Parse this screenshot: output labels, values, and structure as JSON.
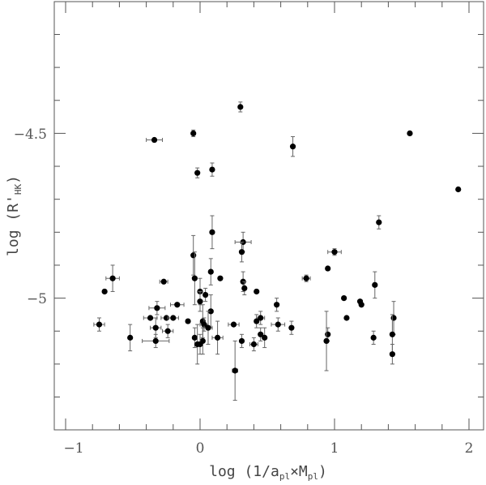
{
  "chart_data": {
    "type": "scatter",
    "title": "",
    "xlabel": "log (1/a_pl×M_pl)",
    "ylabel": "log (R'_HK)",
    "xlabel_parts": {
      "main": "log (1/a",
      "sub1": "pl",
      "mid": "×M",
      "sub2": "pl",
      "end": ")"
    },
    "ylabel_parts": {
      "main": "log (R'",
      "sub": "HK",
      "end": ")"
    },
    "xlim": [
      -1.1,
      2.1
    ],
    "ylim": [
      -5.4,
      -4.2
    ],
    "x_ticks": [
      -1,
      0,
      1,
      2
    ],
    "x_tick_labels": [
      "−1",
      "0",
      "1",
      "2"
    ],
    "y_ticks": [
      -4.5,
      -5
    ],
    "y_tick_labels": [
      "−4.5",
      "−5"
    ],
    "x_minor_step": 0.2,
    "y_minor_step": 0.1,
    "grid": false,
    "colors": {
      "points": "#000000",
      "axes": "#555555",
      "errorbars": "#666666"
    },
    "points": [
      {
        "x": 0.3,
        "y": -4.42,
        "ye": 0.015
      },
      {
        "x": -0.34,
        "y": -4.52,
        "xe": 0.06
      },
      {
        "x": -0.05,
        "y": -4.5,
        "ye": 0.01
      },
      {
        "x": 1.56,
        "y": -4.5
      },
      {
        "x": 0.69,
        "y": -4.54,
        "ye": 0.03
      },
      {
        "x": -0.02,
        "y": -4.62,
        "ye": 0.015
      },
      {
        "x": 0.09,
        "y": -4.61,
        "ye": 0.02
      },
      {
        "x": 1.92,
        "y": -4.67
      },
      {
        "x": 1.33,
        "y": -4.77,
        "ye": 0.02
      },
      {
        "x": 0.09,
        "y": -4.8,
        "ye": 0.05
      },
      {
        "x": 0.32,
        "y": -4.83,
        "ye": 0.03,
        "xe": 0.06
      },
      {
        "x": 0.31,
        "y": -4.86,
        "ye": 0.03
      },
      {
        "x": 1.0,
        "y": -4.86,
        "ye": 0.01,
        "xe": 0.05
      },
      {
        "x": -0.05,
        "y": -4.87,
        "ye": 0.06
      },
      {
        "x": 0.95,
        "y": -4.91
      },
      {
        "x": 0.08,
        "y": -4.92,
        "ye": 0.04
      },
      {
        "x": -0.65,
        "y": -4.94,
        "ye": 0.04,
        "xe": 0.05
      },
      {
        "x": 0.15,
        "y": -4.94
      },
      {
        "x": 0.79,
        "y": -4.94,
        "ye": 0.01,
        "xe": 0.03
      },
      {
        "x": -0.04,
        "y": -4.94,
        "ye": 0.08
      },
      {
        "x": -0.27,
        "y": -4.95,
        "xe": 0.03
      },
      {
        "x": 0.32,
        "y": -4.95,
        "ye": 0.03
      },
      {
        "x": 0.33,
        "y": -4.97,
        "ye": 0.02
      },
      {
        "x": 1.3,
        "y": -4.96,
        "ye": 0.04
      },
      {
        "x": -0.71,
        "y": -4.98
      },
      {
        "x": 0.0,
        "y": -4.98,
        "ye": 0.04
      },
      {
        "x": 0.42,
        "y": -4.98
      },
      {
        "x": 0.04,
        "y": -4.99,
        "ye": 0.02
      },
      {
        "x": 1.07,
        "y": -5.0
      },
      {
        "x": 0.0,
        "y": -5.01,
        "ye": 0.03
      },
      {
        "x": 1.19,
        "y": -5.01
      },
      {
        "x": 1.2,
        "y": -5.02
      },
      {
        "x": -0.17,
        "y": -5.02,
        "xe": 0.05
      },
      {
        "x": 0.57,
        "y": -5.02,
        "ye": 0.02
      },
      {
        "x": -0.32,
        "y": -5.03,
        "ye": 0.02,
        "xe": 0.06
      },
      {
        "x": 0.08,
        "y": -5.04,
        "ye": 0.05
      },
      {
        "x": -0.37,
        "y": -5.06,
        "xe": 0.05
      },
      {
        "x": -0.25,
        "y": -5.06,
        "xe": 0.04
      },
      {
        "x": -0.2,
        "y": -5.06,
        "xe": 0.04
      },
      {
        "x": 0.45,
        "y": -5.06,
        "ye": 0.02,
        "xe": 0.03
      },
      {
        "x": 1.09,
        "y": -5.06
      },
      {
        "x": 1.44,
        "y": -5.06,
        "ye": 0.05
      },
      {
        "x": -0.09,
        "y": -5.07
      },
      {
        "x": 0.02,
        "y": -5.07,
        "ye": 0.05
      },
      {
        "x": 0.42,
        "y": -5.07,
        "ye": 0.02
      },
      {
        "x": -0.75,
        "y": -5.08,
        "ye": 0.02,
        "xe": 0.04
      },
      {
        "x": 0.03,
        "y": -5.08,
        "ye": 0.02,
        "xe": 0.03
      },
      {
        "x": 0.25,
        "y": -5.08,
        "xe": 0.04
      },
      {
        "x": 0.58,
        "y": -5.08,
        "ye": 0.02,
        "xe": 0.05
      },
      {
        "x": 0.68,
        "y": -5.09,
        "ye": 0.02
      },
      {
        "x": -0.33,
        "y": -5.09,
        "ye": 0.03,
        "xe": 0.04
      },
      {
        "x": 0.06,
        "y": -5.09,
        "ye": 0.05,
        "xe": 0.03
      },
      {
        "x": -0.24,
        "y": -5.1,
        "ye": 0.02,
        "xe": 0.04
      },
      {
        "x": 0.45,
        "y": -5.11,
        "ye": 0.02
      },
      {
        "x": 0.95,
        "y": -5.11,
        "ye": 0.02
      },
      {
        "x": 1.43,
        "y": -5.11,
        "ye": 0.06
      },
      {
        "x": -0.52,
        "y": -5.12,
        "ye": 0.04
      },
      {
        "x": 0.13,
        "y": -5.12,
        "ye": 0.05,
        "xe": 0.04
      },
      {
        "x": 0.48,
        "y": -5.12,
        "ye": 0.03
      },
      {
        "x": -0.04,
        "y": -5.12,
        "ye": 0.03
      },
      {
        "x": 1.29,
        "y": -5.12,
        "ye": 0.02
      },
      {
        "x": 0.02,
        "y": -5.13,
        "ye": 0.04
      },
      {
        "x": 0.31,
        "y": -5.13,
        "ye": 0.02
      },
      {
        "x": 0.94,
        "y": -5.13,
        "ye": 0.09
      },
      {
        "x": -0.33,
        "y": -5.13,
        "ye": 0.02,
        "xe": 0.1
      },
      {
        "x": -0.02,
        "y": -5.14,
        "ye": 0.06
      },
      {
        "x": 0.0,
        "y": -5.14,
        "ye": 0.03
      },
      {
        "x": 0.4,
        "y": -5.14,
        "ye": 0.02,
        "xe": 0.03
      },
      {
        "x": 1.43,
        "y": -5.17,
        "ye": 0.03
      },
      {
        "x": 0.26,
        "y": -5.22,
        "ye": 0.09,
        "xe": 0.02
      }
    ]
  }
}
